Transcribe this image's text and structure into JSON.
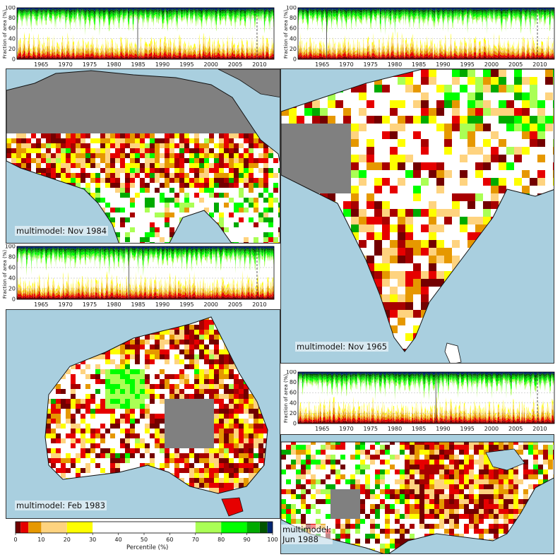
{
  "chart_data": [
    {
      "type": "area",
      "panel": "africa-timeseries",
      "ylabel": "Fraction of area (%)",
      "ylim": [
        0,
        100
      ],
      "yticks": [
        0,
        20,
        40,
        60,
        80,
        100
      ],
      "xlim": [
        1960,
        2013
      ],
      "xticks": [
        1965,
        1970,
        1975,
        1980,
        1985,
        1990,
        1995,
        2000,
        2005,
        2010
      ],
      "marked_years": [
        1984.9,
        2009.5
      ],
      "event": "multimodel: Nov 1984"
    },
    {
      "type": "area",
      "panel": "india-timeseries",
      "ylabel": "Fraction of area (%)",
      "ylim": [
        0,
        100
      ],
      "yticks": [
        0,
        20,
        40,
        60,
        80,
        100
      ],
      "xlim": [
        1960,
        2013
      ],
      "xticks": [
        1965,
        1970,
        1975,
        1980,
        1985,
        1990,
        1995,
        2000,
        2005,
        2010
      ],
      "marked_years": [
        1965.9,
        2009.5
      ],
      "event": "multimodel: Nov 1965"
    },
    {
      "type": "area",
      "panel": "australia-timeseries",
      "ylabel": "Fraction of area (%)",
      "ylim": [
        0,
        100
      ],
      "yticks": [
        0,
        20,
        40,
        60,
        80,
        100
      ],
      "xlim": [
        1960,
        2013
      ],
      "xticks": [
        1965,
        1970,
        1975,
        1980,
        1985,
        1990,
        1995,
        2000,
        2005,
        2010
      ],
      "marked_years": [
        1983.1,
        2009.5
      ],
      "event": "multimodel: Feb 1983"
    },
    {
      "type": "area",
      "panel": "usa-timeseries",
      "ylabel": "Fraction of area (%)",
      "ylim": [
        0,
        100
      ],
      "yticks": [
        0,
        20,
        40,
        60,
        80,
        100
      ],
      "xlim": [
        1960,
        2013
      ],
      "xticks": [
        1965,
        1970,
        1975,
        1980,
        1985,
        1990,
        1995,
        2000,
        2005,
        2010
      ],
      "marked_years": [
        1988.5,
        2009.5
      ],
      "event": "multimodel:\nJun 1988"
    },
    {
      "type": "heatmap",
      "panel": "colorbar",
      "title": "Percentile (%)",
      "bounds": [
        0,
        2,
        5,
        10,
        20,
        30,
        70,
        80,
        90,
        95,
        98,
        100
      ],
      "colors": [
        "#730000",
        "#e60000",
        "#e69800",
        "#fed37f",
        "#fefe00",
        "#ffffff",
        "#aaff55",
        "#00ff00",
        "#00aa00",
        "#005500",
        "#002673"
      ],
      "tick_labels": [
        "0",
        "10",
        "20",
        "30",
        "40",
        "50",
        "60",
        "70",
        "80",
        "90",
        "100"
      ]
    }
  ],
  "maps": {
    "africa": {
      "label": "multimodel: Nov 1984"
    },
    "india": {
      "label": "multimodel: Nov 1965"
    },
    "australia": {
      "label": "multimodel: Feb 1983"
    },
    "usa": {
      "label": "multimodel:\nJun 1988"
    }
  },
  "colors": {
    "ocean": "#a9cfdf",
    "masked": "#808080",
    "land_normal": "#ffffff"
  }
}
